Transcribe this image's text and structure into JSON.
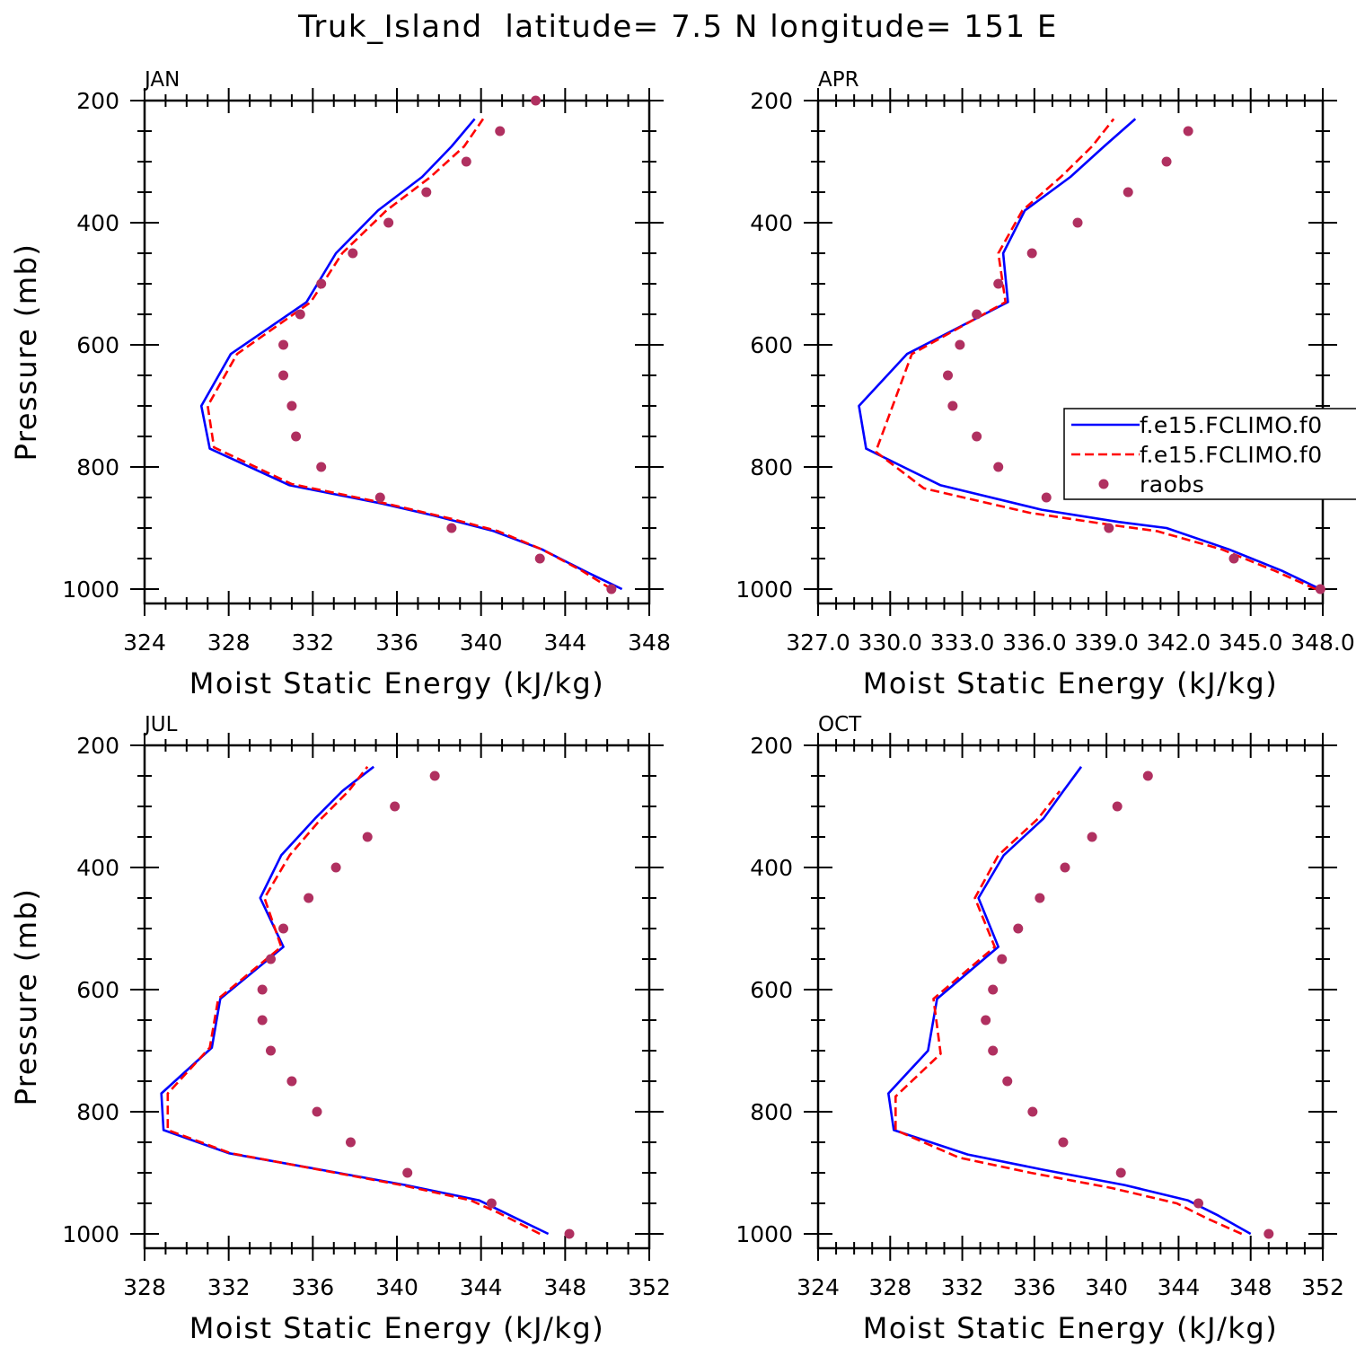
{
  "title": "Truk_Island  latitude= 7.5 N longitude= 151 E",
  "legend": {
    "entries": [
      {
        "label": "f.e15.FCLIMO.f0",
        "color": "#0000ff",
        "style": "solid"
      },
      {
        "label": "f.e15.FCLIMO.f0",
        "color": "#ff0000",
        "style": "dashed"
      },
      {
        "label": "raobs",
        "color": "#b03060",
        "style": "dot"
      }
    ]
  },
  "chart_data": [
    {
      "type": "line",
      "panel": "JAN",
      "xlabel": "Moist Static Energy (kJ/kg)",
      "ylabel": "Pressure (mb)",
      "xlim": [
        324,
        348
      ],
      "ylim": [
        1000,
        200
      ],
      "xticks": [
        324,
        328,
        332,
        336,
        340,
        344,
        348
      ],
      "xtick_labels": [
        "324",
        "328",
        "332",
        "336",
        "340",
        "344",
        "348"
      ],
      "yticks": [
        200,
        400,
        600,
        800,
        1000
      ],
      "ytick_labels": [
        "200",
        "400",
        "600",
        "800",
        "1000"
      ],
      "series": [
        {
          "color": "#0000ff",
          "style": "solid",
          "x": [
            346.7,
            345.8,
            344.9,
            342.9,
            340.6,
            337.8,
            335.3,
            330.9,
            327.1,
            326.7,
            328.1,
            331.7,
            333.1,
            335.1,
            337.2,
            338.6,
            339.7
          ],
          "y": [
            1000,
            985,
            970,
            935,
            905,
            880,
            860,
            830,
            770,
            700,
            615,
            530,
            450,
            380,
            325,
            275,
            230
          ]
        },
        {
          "color": "#ff0000",
          "style": "dashed",
          "x": [
            346.2,
            345.5,
            344.8,
            342.9,
            340.8,
            338.6,
            335.5,
            331.0,
            327.3,
            327.0,
            328.4,
            331.9,
            333.4,
            335.5,
            337.6,
            339.2,
            340.1
          ],
          "y": [
            1000,
            985,
            970,
            935,
            905,
            885,
            860,
            828,
            768,
            700,
            615,
            530,
            450,
            380,
            325,
            275,
            230
          ]
        },
        {
          "color": "#b03060",
          "style": "dot",
          "x": [
            346.2,
            342.8,
            338.6,
            335.2,
            332.4,
            331.2,
            331.0,
            330.6,
            330.6,
            331.4,
            332.4,
            333.9,
            335.6,
            337.4,
            339.3,
            340.9,
            342.6
          ],
          "y": [
            1000,
            950,
            900,
            850,
            800,
            750,
            700,
            650,
            600,
            550,
            500,
            450,
            400,
            350,
            300,
            250,
            200
          ]
        }
      ]
    },
    {
      "type": "line",
      "panel": "APR",
      "xlabel": "Moist Static Energy (kJ/kg)",
      "ylabel": "",
      "xlim": [
        327.0,
        348.0
      ],
      "ylim": [
        1000,
        200
      ],
      "xticks": [
        327,
        330,
        333,
        336,
        339,
        342,
        345,
        348
      ],
      "xtick_labels": [
        "327.0",
        "330.0",
        "333.0",
        "336.0",
        "339.0",
        "342.0",
        "345.0",
        "348.0"
      ],
      "yticks": [
        200,
        400,
        600,
        800,
        1000
      ],
      "ytick_labels": [
        "200",
        "400",
        "600",
        "800",
        "1000"
      ],
      "series": [
        {
          "color": "#0000ff",
          "style": "solid",
          "x": [
            347.9,
            346.3,
            344.1,
            341.5,
            339.5,
            336.3,
            332.1,
            329.0,
            328.7,
            330.7,
            334.9,
            334.7,
            335.6,
            337.5,
            338.9,
            340.2
          ],
          "y": [
            1000,
            970,
            935,
            900,
            890,
            870,
            830,
            770,
            700,
            615,
            530,
            450,
            380,
            325,
            275,
            230
          ]
        },
        {
          "color": "#ff0000",
          "style": "dashed",
          "x": [
            347.7,
            346.0,
            343.8,
            341.1,
            339.2,
            335.8,
            331.4,
            329.4,
            330.9,
            334.8,
            334.5,
            335.5,
            337.1,
            338.4,
            339.3
          ],
          "y": [
            1000,
            970,
            935,
            905,
            895,
            875,
            835,
            775,
            615,
            530,
            450,
            380,
            325,
            275,
            230
          ]
        },
        {
          "color": "#b03060",
          "style": "dot",
          "x": [
            347.9,
            344.3,
            339.1,
            336.5,
            334.5,
            333.6,
            332.6,
            332.4,
            332.9,
            333.6,
            334.5,
            335.9,
            337.8,
            339.9,
            341.5,
            342.4
          ],
          "y": [
            1000,
            950,
            900,
            850,
            800,
            750,
            700,
            650,
            600,
            550,
            500,
            450,
            400,
            350,
            300,
            250
          ]
        }
      ]
    },
    {
      "type": "line",
      "panel": "JUL",
      "xlabel": "Moist Static Energy (kJ/kg)",
      "ylabel": "Pressure (mb)",
      "xlim": [
        328,
        352
      ],
      "ylim": [
        1000,
        200
      ],
      "xticks": [
        328,
        332,
        336,
        340,
        344,
        348,
        352
      ],
      "xtick_labels": [
        "328",
        "332",
        "336",
        "340",
        "344",
        "348",
        "352"
      ],
      "yticks": [
        200,
        400,
        600,
        800,
        1000
      ],
      "ytick_labels": [
        "200",
        "400",
        "600",
        "800",
        "1000"
      ],
      "series": [
        {
          "color": "#0000ff",
          "style": "solid",
          "x": [
            347.2,
            345.1,
            343.9,
            340.4,
            332.0,
            328.9,
            328.8,
            331.2,
            331.6,
            334.6,
            333.5,
            334.5,
            336.1,
            337.4,
            338.9
          ],
          "y": [
            1000,
            965,
            945,
            920,
            868,
            830,
            770,
            695,
            615,
            530,
            450,
            380,
            320,
            275,
            235
          ]
        },
        {
          "color": "#ff0000",
          "style": "dashed",
          "x": [
            346.8,
            344.8,
            343.5,
            340.2,
            332.1,
            329.1,
            329.1,
            331.1,
            331.5,
            334.5,
            333.7,
            334.9,
            336.4,
            337.7,
            338.6
          ],
          "y": [
            1000,
            965,
            945,
            920,
            868,
            830,
            770,
            695,
            615,
            530,
            450,
            380,
            320,
            275,
            235
          ]
        },
        {
          "color": "#b03060",
          "style": "dot",
          "x": [
            348.2,
            344.5,
            340.5,
            337.8,
            336.2,
            335.0,
            334.0,
            333.6,
            333.6,
            334.0,
            334.6,
            335.8,
            337.1,
            338.6,
            339.9,
            341.8
          ],
          "y": [
            1000,
            950,
            900,
            850,
            800,
            750,
            700,
            650,
            600,
            550,
            500,
            450,
            400,
            350,
            300,
            250
          ]
        }
      ]
    },
    {
      "type": "line",
      "panel": "OCT",
      "xlabel": "Moist Static Energy (kJ/kg)",
      "ylabel": "",
      "xlim": [
        324,
        352
      ],
      "ylim": [
        1000,
        200
      ],
      "xticks": [
        324,
        328,
        332,
        336,
        340,
        344,
        348,
        352
      ],
      "xtick_labels": [
        "324",
        "328",
        "332",
        "336",
        "340",
        "344",
        "348",
        "352"
      ],
      "yticks": [
        200,
        400,
        600,
        800,
        1000
      ],
      "ytick_labels": [
        "200",
        "400",
        "600",
        "800",
        "1000"
      ],
      "series": [
        {
          "color": "#0000ff",
          "style": "solid",
          "x": [
            348.0,
            346.2,
            344.5,
            341.0,
            336.5,
            332.3,
            328.2,
            327.9,
            330.1,
            330.6,
            334.0,
            332.9,
            334.3,
            336.5,
            337.6,
            338.6
          ],
          "y": [
            1000,
            970,
            945,
            920,
            895,
            870,
            830,
            770,
            700,
            615,
            530,
            450,
            380,
            320,
            275,
            235
          ]
        },
        {
          "color": "#ff0000",
          "style": "dashed",
          "x": [
            347.5,
            345.6,
            343.9,
            340.3,
            335.8,
            331.8,
            328.3,
            328.3,
            330.8,
            330.4,
            333.8,
            332.7,
            334.0,
            336.2,
            337.4
          ],
          "y": [
            1000,
            975,
            950,
            925,
            900,
            875,
            830,
            775,
            705,
            615,
            530,
            450,
            380,
            320,
            275
          ]
        },
        {
          "color": "#b03060",
          "style": "dot",
          "x": [
            349.0,
            345.1,
            340.8,
            337.6,
            335.9,
            334.5,
            333.7,
            333.3,
            333.7,
            334.2,
            335.1,
            336.3,
            337.7,
            339.2,
            340.6,
            342.3
          ],
          "y": [
            1000,
            950,
            900,
            850,
            800,
            750,
            700,
            650,
            600,
            550,
            500,
            450,
            400,
            350,
            300,
            250
          ]
        }
      ]
    }
  ]
}
